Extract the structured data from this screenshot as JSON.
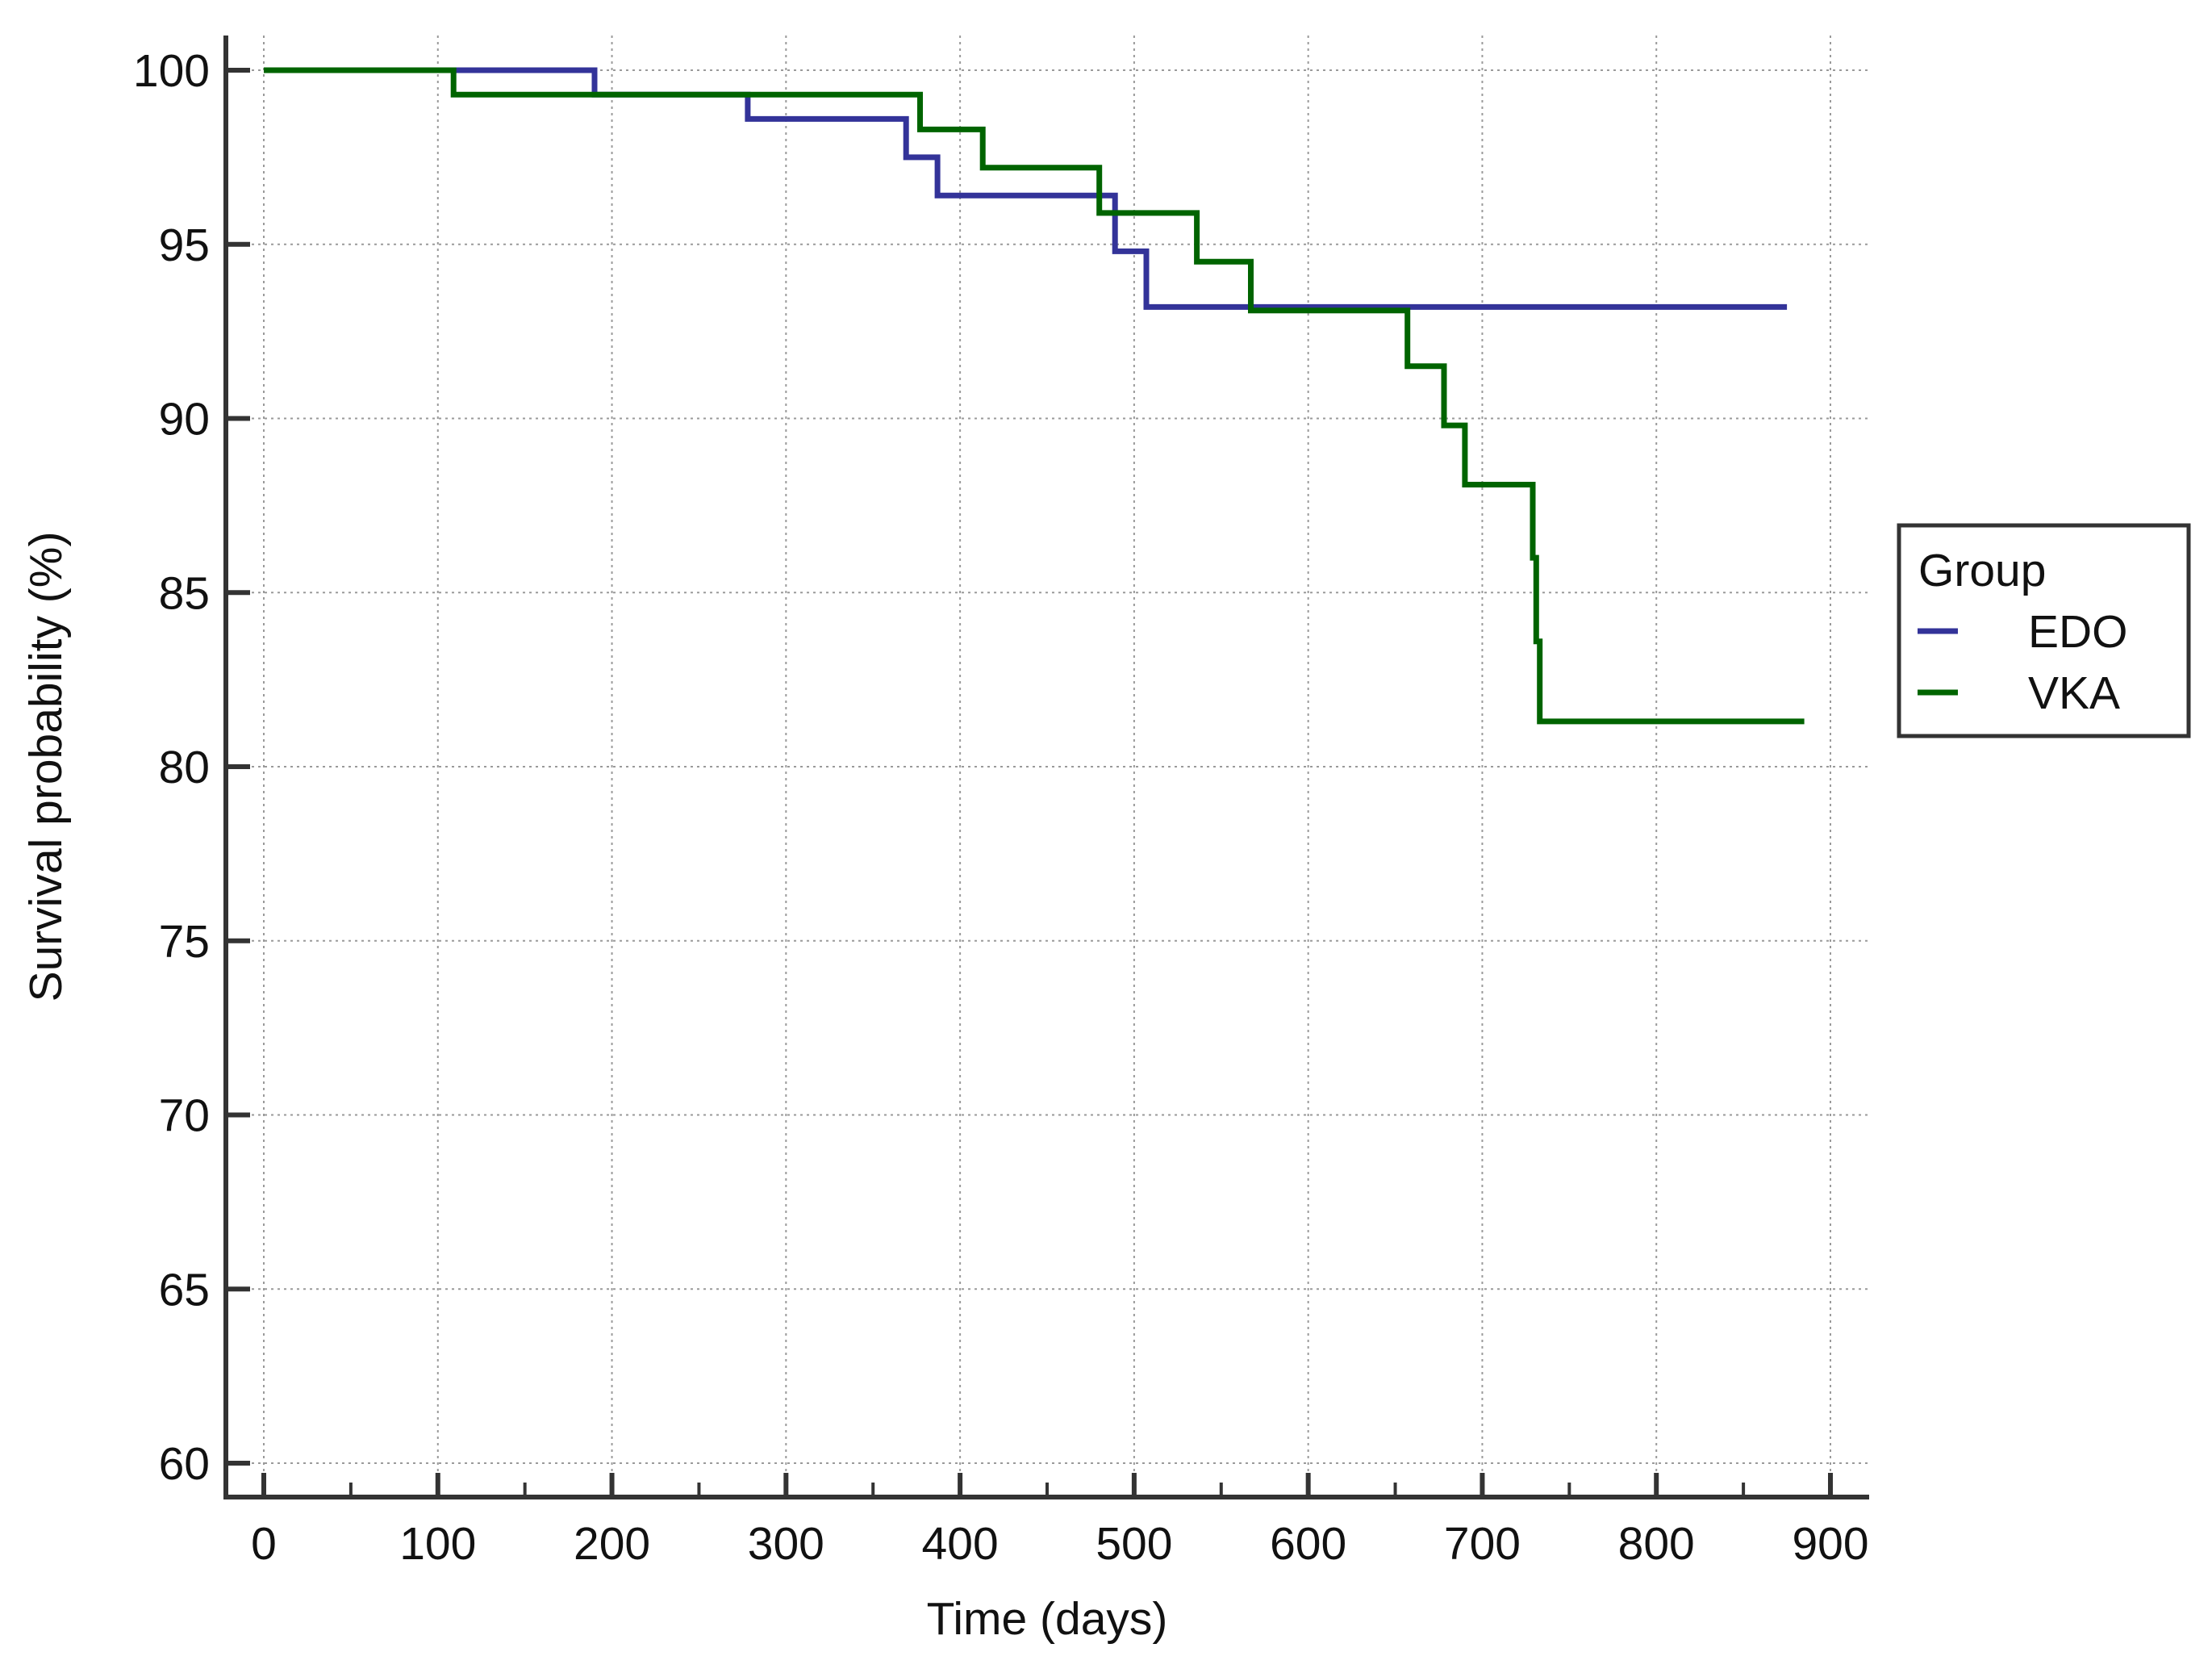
{
  "chart_data": {
    "type": "line",
    "step": true,
    "title": "",
    "xlabel": "Time (days)",
    "ylabel": "Survival probability (%)",
    "xlim": [
      0,
      900
    ],
    "ylim": [
      60,
      100
    ],
    "x_ticks": [
      0,
      100,
      200,
      300,
      400,
      500,
      600,
      700,
      800,
      900
    ],
    "y_ticks": [
      60,
      65,
      70,
      75,
      80,
      85,
      90,
      95,
      100
    ],
    "grid": true,
    "legend": {
      "title": "Group",
      "position": "right"
    },
    "series": [
      {
        "name": "EDO",
        "color": "#333399",
        "points": [
          [
            0,
            100
          ],
          [
            190,
            100
          ],
          [
            190,
            99.3
          ],
          [
            278,
            99.3
          ],
          [
            278,
            98.6
          ],
          [
            369,
            98.6
          ],
          [
            369,
            97.5
          ],
          [
            387,
            97.5
          ],
          [
            387,
            96.4
          ],
          [
            489,
            96.4
          ],
          [
            489,
            94.8
          ],
          [
            507,
            94.8
          ],
          [
            507,
            93.2
          ],
          [
            875,
            93.2
          ]
        ]
      },
      {
        "name": "VKA",
        "color": "#006400",
        "points": [
          [
            0,
            100
          ],
          [
            109,
            100
          ],
          [
            109,
            99.3
          ],
          [
            377,
            99.3
          ],
          [
            377,
            98.3
          ],
          [
            413,
            98.3
          ],
          [
            413,
            97.2
          ],
          [
            480,
            97.2
          ],
          [
            480,
            95.9
          ],
          [
            536,
            95.9
          ],
          [
            536,
            94.5
          ],
          [
            567,
            94.5
          ],
          [
            567,
            93.1
          ],
          [
            657,
            93.1
          ],
          [
            657,
            91.5
          ],
          [
            678,
            91.5
          ],
          [
            678,
            89.8
          ],
          [
            690,
            89.8
          ],
          [
            690,
            88.1
          ],
          [
            729,
            88.1
          ],
          [
            729,
            86.0
          ],
          [
            731,
            86.0
          ],
          [
            731,
            83.6
          ],
          [
            733,
            83.6
          ],
          [
            733,
            81.3
          ],
          [
            885,
            81.3
          ]
        ]
      }
    ]
  }
}
